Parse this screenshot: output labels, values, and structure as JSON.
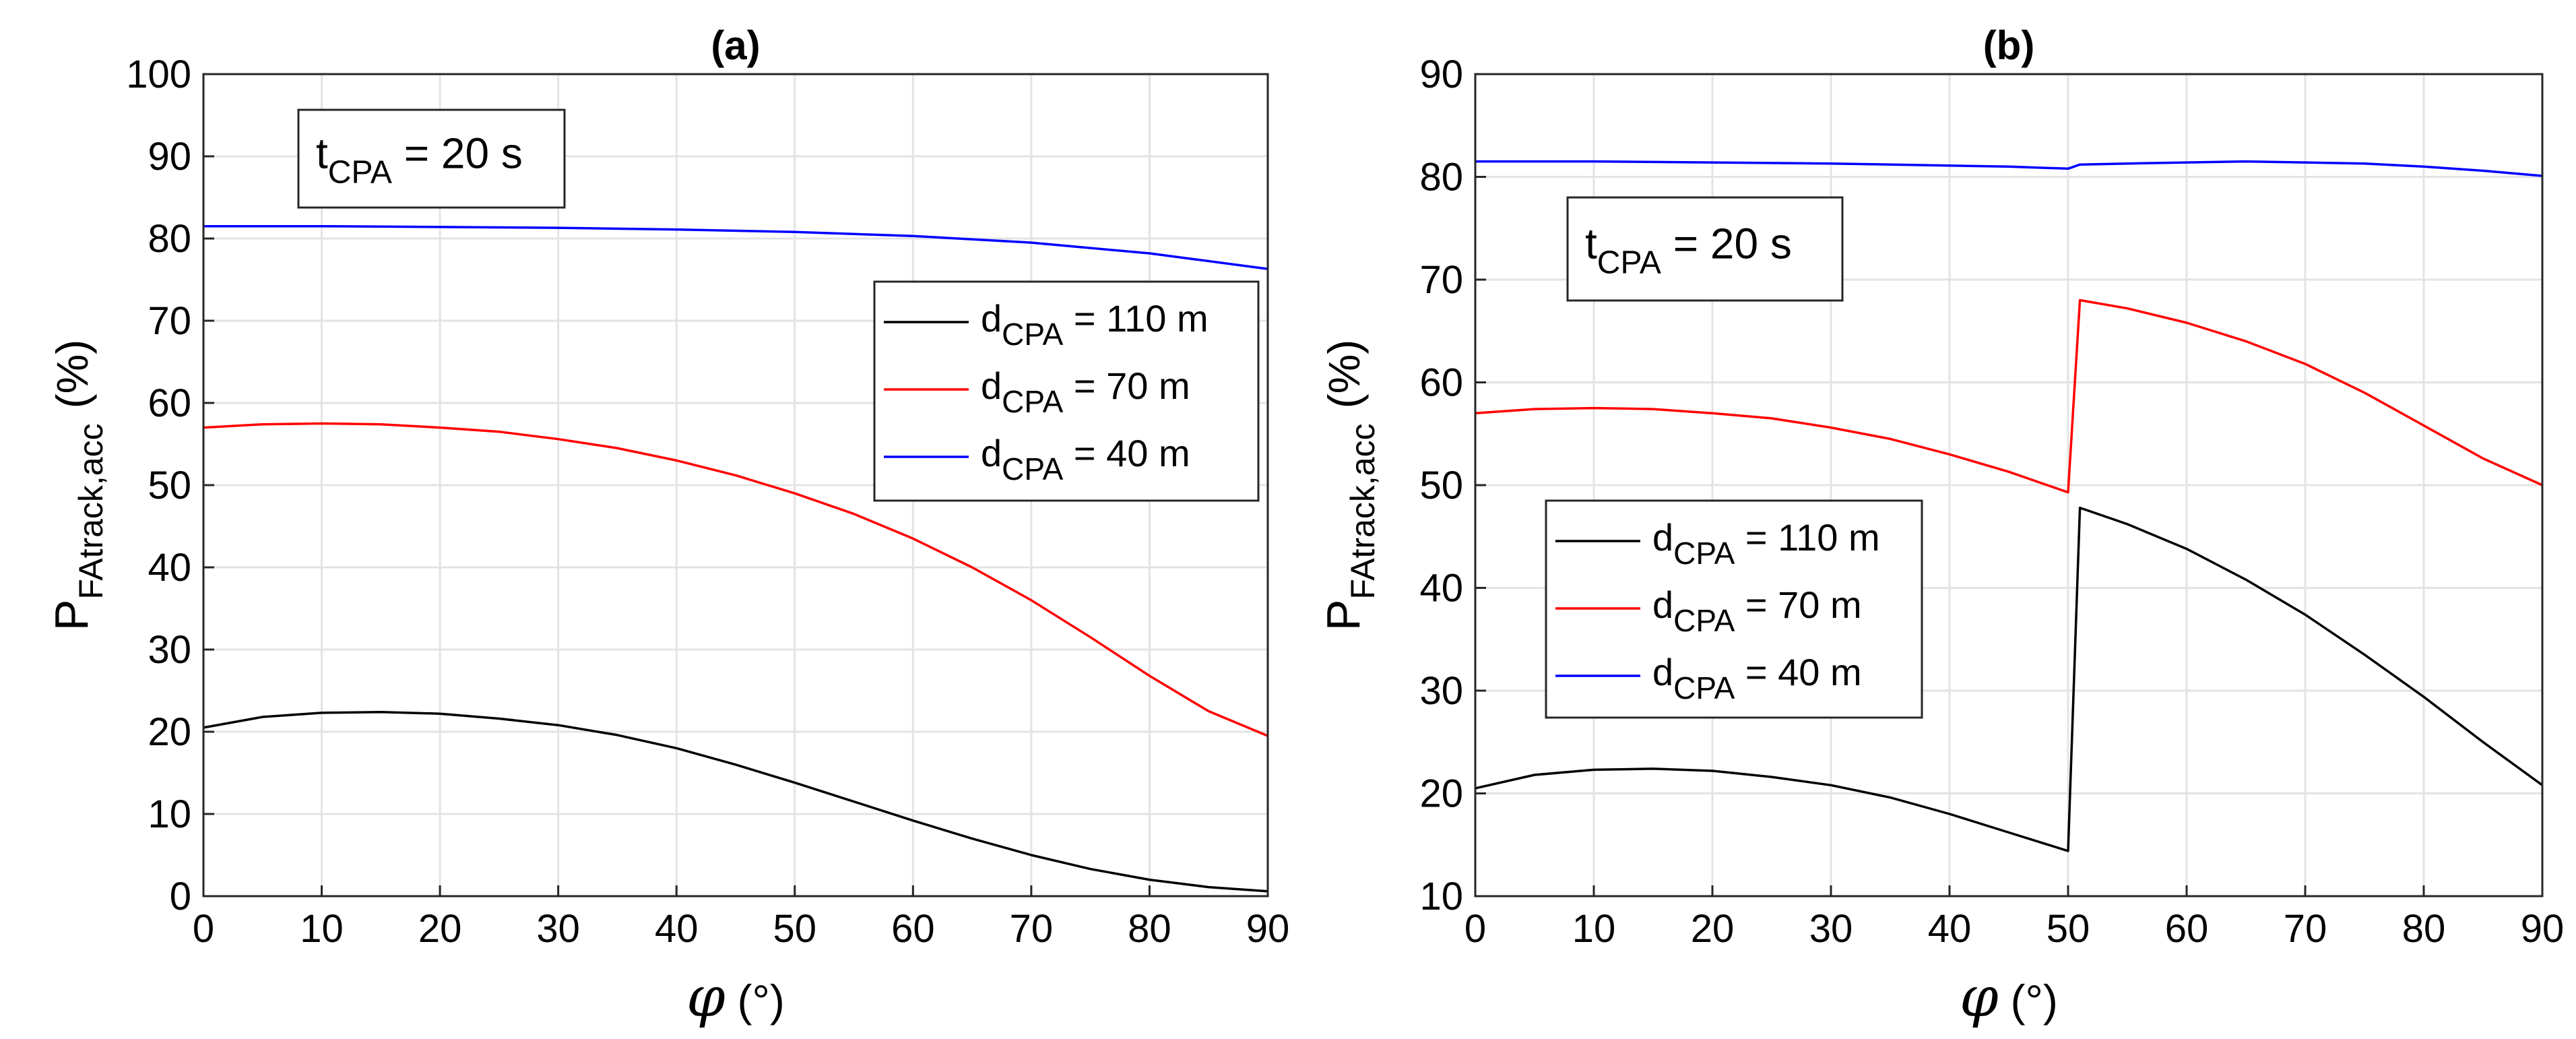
{
  "chart_data": [
    {
      "type": "line",
      "title": "(a)",
      "xlabel_symbol": "φ",
      "xlabel_unit": "(°)",
      "ylabel_main": "P",
      "ylabel_sub": "FAtrack,acc",
      "ylabel_unit": "(%)",
      "xlim": [
        0,
        90
      ],
      "ylim": [
        0,
        100
      ],
      "xticks": [
        "0",
        "10",
        "20",
        "30",
        "40",
        "50",
        "60",
        "70",
        "80",
        "90"
      ],
      "yticks": [
        "0",
        "10",
        "20",
        "30",
        "40",
        "50",
        "60",
        "70",
        "80",
        "90",
        "100"
      ],
      "xtick_values": [
        0,
        10,
        20,
        30,
        40,
        50,
        60,
        70,
        80,
        90
      ],
      "ytick_values": [
        0,
        10,
        20,
        30,
        40,
        50,
        60,
        70,
        80,
        90,
        100
      ],
      "grid": true,
      "annotation": {
        "main": "t",
        "sub": "CPA",
        "rest": " = 20 s"
      },
      "legend_position": "upper-right",
      "series": [
        {
          "name_main": "d",
          "name_sub": "CPA",
          "name_rest": " = 110 m",
          "color": "#000000",
          "x": [
            0,
            5,
            10,
            15,
            20,
            25,
            30,
            35,
            40,
            45,
            50,
            55,
            60,
            65,
            70,
            75,
            80,
            85,
            90
          ],
          "y": [
            20.5,
            21.8,
            22.3,
            22.4,
            22.2,
            21.6,
            20.8,
            19.6,
            18.0,
            16.0,
            13.8,
            11.5,
            9.2,
            7.0,
            5.0,
            3.3,
            2.0,
            1.1,
            0.6
          ]
        },
        {
          "name_main": "d",
          "name_sub": "CPA",
          "name_rest": " = 70 m",
          "color": "#ff0000",
          "x": [
            0,
            5,
            10,
            15,
            20,
            25,
            30,
            35,
            40,
            45,
            50,
            55,
            60,
            65,
            70,
            75,
            80,
            85,
            90
          ],
          "y": [
            57.0,
            57.4,
            57.5,
            57.4,
            57.0,
            56.5,
            55.6,
            54.5,
            53.0,
            51.2,
            49.0,
            46.5,
            43.5,
            40.0,
            36.0,
            31.5,
            26.8,
            22.5,
            19.5
          ]
        },
        {
          "name_main": "d",
          "name_sub": "CPA",
          "name_rest": " = 40 m",
          "color": "#0000ff",
          "x": [
            0,
            10,
            20,
            30,
            40,
            50,
            60,
            70,
            80,
            90
          ],
          "y": [
            81.5,
            81.5,
            81.4,
            81.3,
            81.1,
            80.8,
            80.3,
            79.5,
            78.2,
            76.3
          ]
        }
      ]
    },
    {
      "type": "line",
      "title": "(b)",
      "xlabel_symbol": "φ",
      "xlabel_unit": "(°)",
      "ylabel_main": "P",
      "ylabel_sub": "FAtrack,acc",
      "ylabel_unit": "(%)",
      "xlim": [
        0,
        90
      ],
      "ylim": [
        10,
        90
      ],
      "xticks": [
        "0",
        "10",
        "20",
        "30",
        "40",
        "50",
        "60",
        "70",
        "80",
        "90"
      ],
      "yticks": [
        "10",
        "20",
        "30",
        "40",
        "50",
        "60",
        "70",
        "80",
        "90"
      ],
      "xtick_values": [
        0,
        10,
        20,
        30,
        40,
        50,
        60,
        70,
        80,
        90
      ],
      "ytick_values": [
        10,
        20,
        30,
        40,
        50,
        60,
        70,
        80,
        90
      ],
      "grid": true,
      "annotation": {
        "main": "t",
        "sub": "CPA",
        "rest": " = 20 s"
      },
      "legend_position": "lower-left",
      "series": [
        {
          "name_main": "d",
          "name_sub": "CPA",
          "name_rest": " = 110 m",
          "color": "#000000",
          "x": [
            0,
            5,
            10,
            15,
            20,
            25,
            30,
            35,
            40,
            45,
            50,
            51,
            55,
            60,
            65,
            70,
            75,
            80,
            85,
            90
          ],
          "y": [
            20.5,
            21.8,
            22.3,
            22.4,
            22.2,
            21.6,
            20.8,
            19.6,
            18.0,
            16.2,
            14.4,
            47.8,
            46.2,
            43.8,
            40.8,
            37.4,
            33.5,
            29.4,
            25.0,
            20.8
          ]
        },
        {
          "name_main": "d",
          "name_sub": "CPA",
          "name_rest": " = 70 m",
          "color": "#ff0000",
          "x": [
            0,
            5,
            10,
            15,
            20,
            25,
            30,
            35,
            40,
            45,
            50,
            51,
            55,
            60,
            65,
            70,
            75,
            80,
            85,
            90
          ],
          "y": [
            57.0,
            57.4,
            57.5,
            57.4,
            57.0,
            56.5,
            55.6,
            54.5,
            53.0,
            51.3,
            49.3,
            68.0,
            67.2,
            65.8,
            64.0,
            61.8,
            59.0,
            55.8,
            52.6,
            50.0
          ]
        },
        {
          "name_main": "d",
          "name_sub": "CPA",
          "name_rest": " = 40 m",
          "color": "#0000ff",
          "x": [
            0,
            10,
            20,
            30,
            40,
            45,
            50,
            51,
            55,
            60,
            65,
            70,
            75,
            80,
            85,
            90
          ],
          "y": [
            81.5,
            81.5,
            81.4,
            81.3,
            81.1,
            81.0,
            80.8,
            81.2,
            81.3,
            81.4,
            81.5,
            81.4,
            81.3,
            81.0,
            80.6,
            80.1
          ]
        }
      ]
    }
  ]
}
